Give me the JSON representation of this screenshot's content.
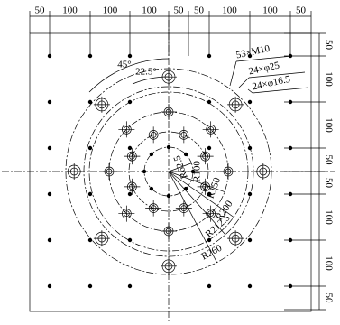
{
  "top_dimensions": [
    "50",
    "100",
    "100",
    "100",
    "50",
    "50",
    "100",
    "100",
    "50"
  ],
  "right_dimensions": [
    "50",
    "100",
    "100",
    "50",
    "50",
    "100",
    "100",
    "50"
  ],
  "angles": [
    "45°",
    "22.5°"
  ],
  "hole_callouts": [
    "53×M10",
    "24×φ25",
    "24×φ16.5"
  ],
  "radii": [
    "R62.5",
    "R100",
    "R150",
    "R200",
    "R212.5",
    "R260"
  ]
}
